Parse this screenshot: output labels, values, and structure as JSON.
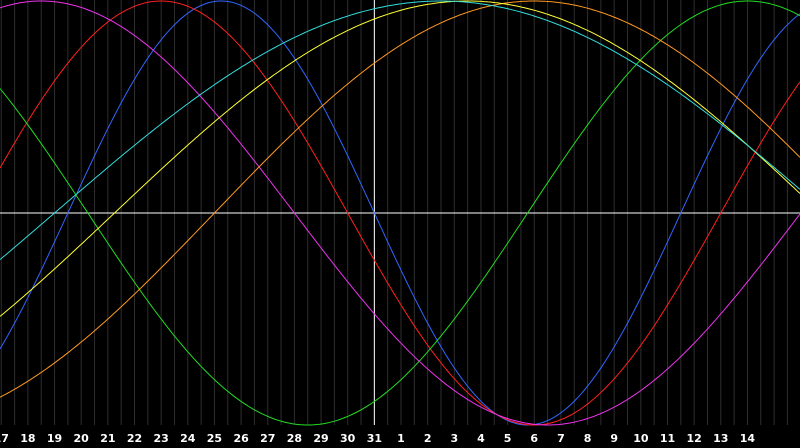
{
  "chart_data": {
    "type": "line",
    "title": "",
    "xlabel": "",
    "ylabel": "",
    "grid": true,
    "tick_labels": [
      "17",
      "18",
      "19",
      "20",
      "21",
      "22",
      "23",
      "24",
      "25",
      "26",
      "27",
      "28",
      "29",
      "30",
      "31",
      "1",
      "2",
      "3",
      "4",
      "5",
      "6",
      "7",
      "8",
      "9",
      "10",
      "11",
      "12",
      "13",
      "14"
    ],
    "today_label": "31",
    "ylim": [
      -1,
      1
    ],
    "colors": {
      "background": "#000000",
      "grid": "#2e2e2e",
      "axes": "#ffffff",
      "labels": "#ffffff"
    },
    "series": [
      {
        "color": "#3366ff",
        "period_days": 23,
        "phase_days": -11.5
      },
      {
        "color": "#ff2020",
        "period_days": 28,
        "phase_days": -15.0
      },
      {
        "color": "#22dd22",
        "period_days": 33,
        "phase_days": 5.75
      },
      {
        "color": "#ee33ee",
        "period_days": 38,
        "phase_days": 16.0
      },
      {
        "color": "#ff9922",
        "period_days": 48,
        "phase_days": -6.0
      },
      {
        "color": "#ffff33",
        "period_days": 53,
        "phase_days": -9.75
      },
      {
        "color": "#33dddd",
        "period_days": 58,
        "phase_days": -12.0
      }
    ]
  }
}
